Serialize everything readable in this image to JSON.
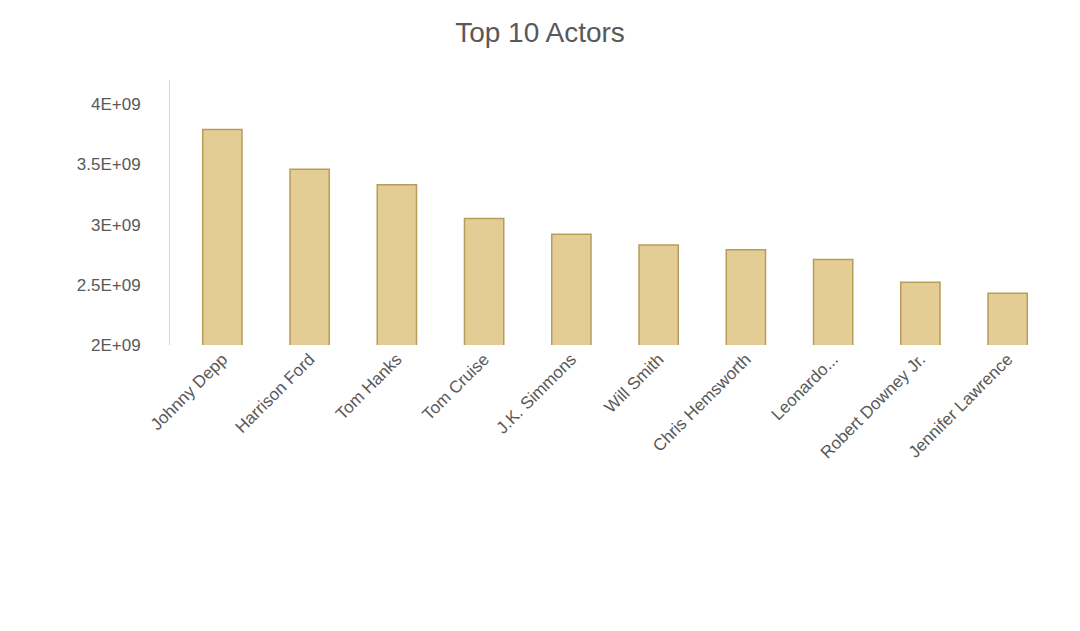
{
  "chart_data": {
    "type": "bar",
    "title": "Top 10 Actors",
    "categories": [
      "Johnny Depp",
      "Harrison Ford",
      "Tom Hanks",
      "Tom Cruise",
      "J.K. Simmons",
      "Will Smith",
      "Chris Hemsworth",
      "Leonardo...",
      "Robert Downey Jr.",
      "Jennifer Lawrence"
    ],
    "values": [
      3790000000,
      3460000000,
      3330000000,
      3050000000,
      2920000000,
      2830000000,
      2790000000,
      2710000000,
      2520000000,
      2430000000
    ],
    "color": "#e3cd94",
    "ylim": [
      2000000000,
      4200000000
    ],
    "yticks": [
      {
        "value": 2000000000,
        "label": "2E+09"
      },
      {
        "value": 2500000000,
        "label": "2.5E+09"
      },
      {
        "value": 3000000000,
        "label": "3E+09"
      },
      {
        "value": 3500000000,
        "label": "3.5E+09"
      },
      {
        "value": 4000000000,
        "label": "4E+09"
      }
    ],
    "grid": false
  }
}
